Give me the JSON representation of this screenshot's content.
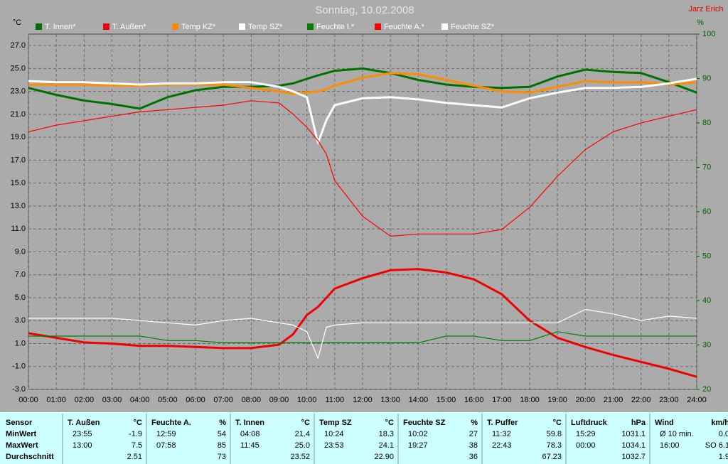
{
  "header": {
    "title": "Sonntag, 10.02.2008",
    "author": "Jarz Erich"
  },
  "chart_data": {
    "type": "line",
    "y_label": "°C",
    "y2_label": "%",
    "x": [
      0,
      1,
      2,
      3,
      4,
      5,
      6,
      7,
      8,
      9,
      9.5,
      10,
      10.4,
      10.7,
      11,
      12,
      13,
      14,
      15,
      16,
      17,
      18,
      19,
      20,
      21,
      22,
      23,
      24
    ],
    "xlim": [
      0,
      24
    ],
    "xticks": [
      {
        "value": 0,
        "label": "00:00"
      },
      {
        "value": 1,
        "label": "01:00"
      },
      {
        "value": 2,
        "label": "02:00"
      },
      {
        "value": 3,
        "label": "03:00"
      },
      {
        "value": 4,
        "label": "04:00"
      },
      {
        "value": 5,
        "label": "05:00"
      },
      {
        "value": 6,
        "label": "06:00"
      },
      {
        "value": 7,
        "label": "07:00"
      },
      {
        "value": 8,
        "label": "08:00"
      },
      {
        "value": 9,
        "label": "09:00"
      },
      {
        "value": 10,
        "label": "10:00"
      },
      {
        "value": 11,
        "label": "11:00"
      },
      {
        "value": 12,
        "label": "12:00"
      },
      {
        "value": 13,
        "label": "13:00"
      },
      {
        "value": 14,
        "label": "14:00"
      },
      {
        "value": 15,
        "label": "15:00"
      },
      {
        "value": 16,
        "label": "16:00"
      },
      {
        "value": 17,
        "label": "17:00"
      },
      {
        "value": 18,
        "label": "18:00"
      },
      {
        "value": 19,
        "label": "19:00"
      },
      {
        "value": 20,
        "label": "20:00"
      },
      {
        "value": 21,
        "label": "21:00"
      },
      {
        "value": 22,
        "label": "22:00"
      },
      {
        "value": 23,
        "label": "23:00"
      },
      {
        "value": 24,
        "label": "24:00"
      }
    ],
    "ylim": [
      -3,
      28
    ],
    "yticks": [
      {
        "value": 27,
        "label": "27.0"
      },
      {
        "value": 25,
        "label": "25.0"
      },
      {
        "value": 23,
        "label": "23.0"
      },
      {
        "value": 21,
        "label": "21.0"
      },
      {
        "value": 19,
        "label": "19.0"
      },
      {
        "value": 17,
        "label": "17.0"
      },
      {
        "value": 15,
        "label": "15.0"
      },
      {
        "value": 13,
        "label": "13.0"
      },
      {
        "value": 11,
        "label": "11.0"
      },
      {
        "value": 9,
        "label": "9.0"
      },
      {
        "value": 7,
        "label": "7.0"
      },
      {
        "value": 5,
        "label": "5.0"
      },
      {
        "value": 3,
        "label": "3.0"
      },
      {
        "value": 1,
        "label": "1.0"
      },
      {
        "value": -1,
        "label": "-1.0"
      },
      {
        "value": -3,
        "label": "-3.0"
      }
    ],
    "y2lim": [
      20,
      100
    ],
    "y2ticks": [
      100,
      90,
      80,
      70,
      60,
      50,
      40,
      30,
      20
    ],
    "grid": true,
    "series": [
      {
        "name": "T. Innen*",
        "color": "#007000",
        "values": [
          23.3,
          22.7,
          22.2,
          21.9,
          21.5,
          22.5,
          23.1,
          23.4,
          23.4,
          23.5,
          23.7,
          24.1,
          24.4,
          24.6,
          24.8,
          25.0,
          24.6,
          24.0,
          23.6,
          23.4,
          23.3,
          23.4,
          24.3,
          24.9,
          24.7,
          24.6,
          23.8,
          22.9
        ]
      },
      {
        "name": "T. Außen*",
        "color": "#f00000",
        "values": [
          1.9,
          1.5,
          1.1,
          1.0,
          0.8,
          0.8,
          0.7,
          0.6,
          0.6,
          0.9,
          1.8,
          3.5,
          4.2,
          5.0,
          5.8,
          6.7,
          7.4,
          7.5,
          7.2,
          6.6,
          5.3,
          3.0,
          1.5,
          0.7,
          0.0,
          -0.6,
          -1.2,
          -1.9
        ]
      },
      {
        "name": "Temp KZ*",
        "color": "#ff8c00",
        "values": [
          23.6,
          23.6,
          23.6,
          23.5,
          23.5,
          23.6,
          23.6,
          23.6,
          23.3,
          23.0,
          22.8,
          22.9,
          23.0,
          23.2,
          23.5,
          24.2,
          24.6,
          24.5,
          24.0,
          23.5,
          23.0,
          22.9,
          23.4,
          23.9,
          23.8,
          23.8,
          23.6,
          23.8
        ]
      },
      {
        "name": "Temp SZ*",
        "color": "#ffffff",
        "values": [
          23.9,
          23.8,
          23.8,
          23.7,
          23.6,
          23.7,
          23.7,
          23.8,
          23.8,
          23.4,
          23.0,
          22.5,
          18.5,
          20.5,
          21.8,
          22.4,
          22.5,
          22.3,
          22.0,
          21.8,
          21.6,
          22.4,
          22.9,
          23.3,
          23.3,
          23.4,
          23.7,
          24.1
        ]
      },
      {
        "name": "Feuchte I.*",
        "color": "#008000",
        "axis": "y2",
        "values": [
          32,
          32,
          32,
          32,
          32,
          31,
          31,
          30.5,
          30.5,
          30.5,
          30.5,
          30.5,
          30.5,
          30.5,
          30.5,
          30.5,
          30.5,
          30.5,
          32,
          32,
          31,
          31,
          33,
          32,
          32,
          32,
          32,
          32
        ]
      },
      {
        "name": "Feuchte A.*",
        "color": "#ff0000",
        "axis": "y2",
        "values": [
          78,
          79.5,
          80.5,
          81.5,
          82.5,
          83,
          83.5,
          84,
          85,
          84.5,
          82,
          79,
          76,
          73,
          67,
          59,
          54.5,
          55,
          55,
          55,
          56,
          61,
          68,
          74,
          78,
          80,
          81.5,
          83
        ]
      },
      {
        "name": "Feuchte SZ*",
        "color": "#ffffff",
        "axis": "y2",
        "values": [
          36,
          36,
          36,
          36,
          35.5,
          35,
          34.5,
          35.5,
          36,
          35,
          34.5,
          33,
          27,
          34,
          34.5,
          35,
          35,
          35,
          35,
          35,
          35,
          35,
          35,
          38,
          37,
          35.5,
          36.5,
          36
        ]
      }
    ]
  },
  "table": {
    "row_labels": [
      "Sensor",
      "MinWert",
      "MaxWert",
      "Durchschnitt"
    ],
    "columns": [
      {
        "name": "T. Außen",
        "unit": "°C",
        "min": [
          "23:55",
          "-1.9"
        ],
        "max": [
          "13:00",
          "7.5"
        ],
        "avg": "2.51"
      },
      {
        "name": "Feuchte A.",
        "unit": "%",
        "min": [
          "12:59",
          "54"
        ],
        "max": [
          "07:58",
          "85"
        ],
        "avg": "73"
      },
      {
        "name": "T. Innen",
        "unit": "°C",
        "min": [
          "04:08",
          "21.4"
        ],
        "max": [
          "11:45",
          "25.0"
        ],
        "avg": "23.52"
      },
      {
        "name": "Temp SZ",
        "unit": "°C",
        "min": [
          "10:24",
          "18.3"
        ],
        "max": [
          "23:53",
          "24.1"
        ],
        "avg": "22.90"
      },
      {
        "name": "Feuchte SZ",
        "unit": "%",
        "min": [
          "10:02",
          "27"
        ],
        "max": [
          "19:27",
          "38"
        ],
        "avg": "36"
      },
      {
        "name": "T. Puffer",
        "unit": "°C",
        "min": [
          "11:32",
          "59.8"
        ],
        "max": [
          "22:43",
          "78.3"
        ],
        "avg": "67.23"
      },
      {
        "name": "Luftdruck",
        "unit": "hPa",
        "min": [
          "15:29",
          "1031.1"
        ],
        "max": [
          "00:00",
          "1034.1"
        ],
        "avg": "1032.7"
      },
      {
        "name": "Wind",
        "unit": "km/h",
        "min": [
          "Ø 10 min.",
          "0.0"
        ],
        "max": [
          "16:00",
          "SO 6.1"
        ],
        "avg": "1.9"
      }
    ]
  }
}
